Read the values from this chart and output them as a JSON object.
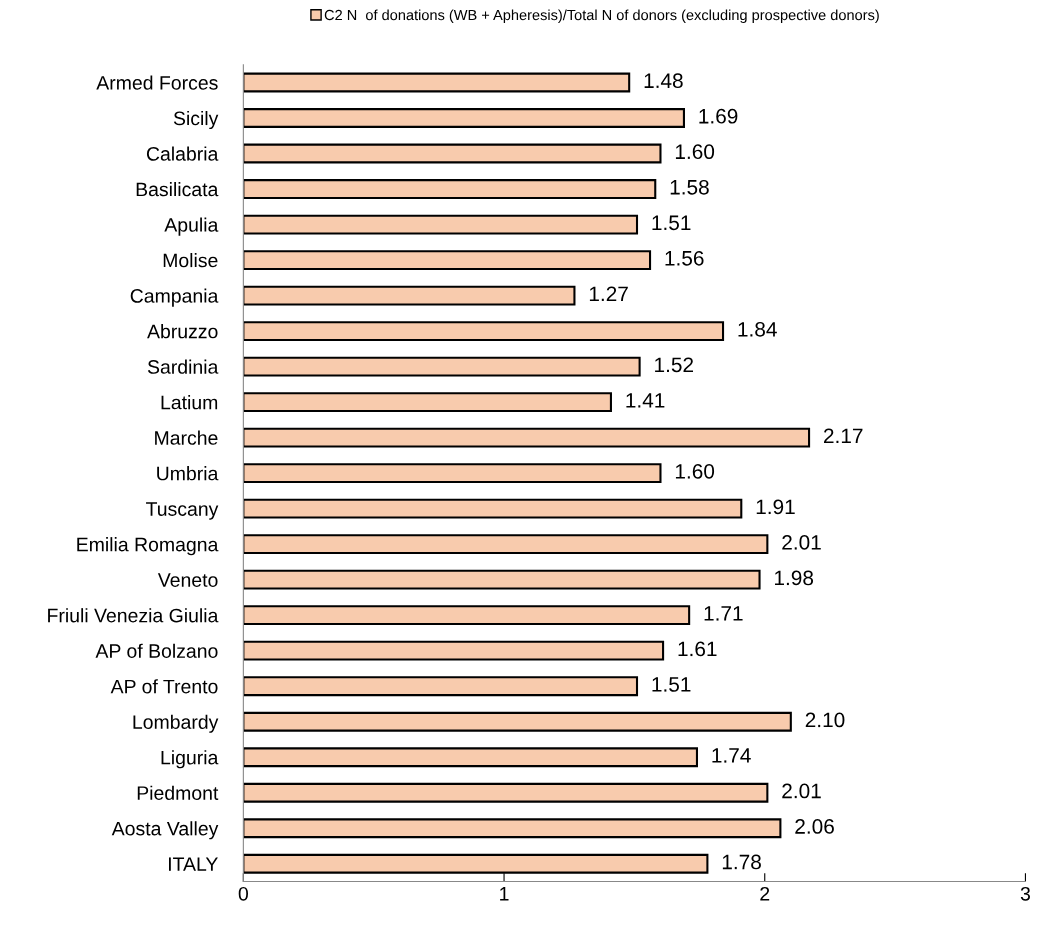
{
  "chart_data": {
    "type": "bar",
    "orientation": "horizontal",
    "categories": [
      "Armed Forces",
      "Sicily",
      "Calabria",
      "Basilicata",
      "Apulia",
      "Molise",
      "Campania",
      "Abruzzo",
      "Sardinia",
      "Latium",
      "Marche",
      "Umbria",
      "Tuscany",
      "Emilia Romagna",
      "Veneto",
      "Friuli Venezia Giulia",
      "AP of Bolzano",
      "AP of Trento",
      "Lombardy",
      "Liguria",
      "Piedmont",
      "Aosta Valley",
      "ITALY"
    ],
    "series": [
      {
        "name": "C2 N  of donations (WB + Apheresis)/Total N of donors (excluding prospective donors)",
        "color": "#f8cbad",
        "values": [
          1.48,
          1.69,
          1.6,
          1.58,
          1.51,
          1.56,
          1.27,
          1.84,
          1.52,
          1.41,
          2.17,
          1.6,
          1.91,
          2.01,
          1.98,
          1.71,
          1.61,
          1.51,
          2.1,
          1.74,
          2.01,
          2.06,
          1.78
        ],
        "value_labels": [
          "1.48",
          "1.69",
          "1.60",
          "1.58",
          "1.51",
          "1.56",
          "1.27",
          "1.84",
          "1.52",
          "1.41",
          "2.17",
          "1.60",
          "1.91",
          "2.01",
          "1.98",
          "1.71",
          "1.61",
          "1.51",
          "2.10",
          "1.74",
          "2.01",
          "2.06",
          "1.78"
        ]
      }
    ],
    "xlim": [
      0,
      3
    ],
    "xticks": [
      0,
      1,
      2,
      3
    ],
    "legend": "top",
    "grid": false
  }
}
